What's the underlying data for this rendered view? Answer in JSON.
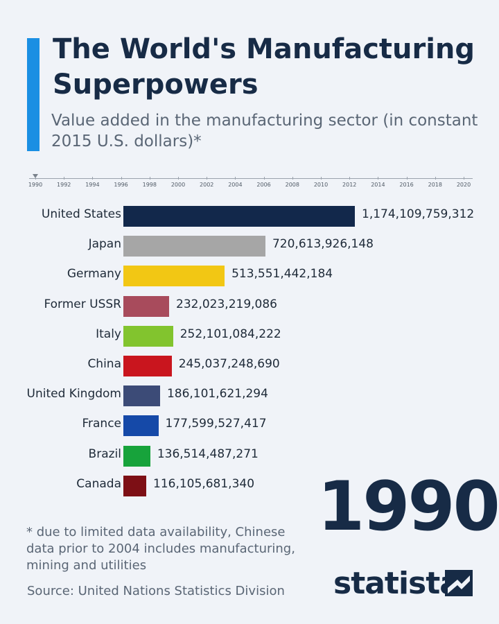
{
  "title": "The World's Manufacturing Superpowers",
  "subtitle": "Value added in the manufacturing sector (in constant 2015 U.S. dollars)*",
  "timeline": {
    "ticks": [
      "1990",
      "1992",
      "1994",
      "1996",
      "1998",
      "2000",
      "2002",
      "2004",
      "2006",
      "2008",
      "2010",
      "2012",
      "2014",
      "2016",
      "2018",
      "2020"
    ],
    "current": "1990"
  },
  "chart_data": {
    "type": "bar",
    "orientation": "horizontal",
    "categories": [
      "United States",
      "Japan",
      "Germany",
      "Former USSR",
      "Italy",
      "China",
      "United Kingdom",
      "France",
      "Brazil",
      "Canada"
    ],
    "values": [
      1174109759312,
      720613926148,
      513551442184,
      232023219086,
      252101084222,
      245037248690,
      186101621294,
      177599527417,
      136514487271,
      116105681340
    ],
    "value_labels": [
      "1,174,109,759,312",
      "720,613,926,148",
      "513,551,442,184",
      "232,023,219,086",
      "252,101,084,222",
      "245,037,248,690",
      "186,101,621,294",
      "177,599,527,417",
      "136,514,487,271",
      "116,105,681,340"
    ],
    "colors": [
      "#12284b",
      "#a6a6a6",
      "#f2c714",
      "#a84b5c",
      "#82c42e",
      "#c9151e",
      "#3c4b77",
      "#1549a8",
      "#17a33b",
      "#7d0f15"
    ],
    "grid": false,
    "legend": "none"
  },
  "year_label": "1990",
  "footnote": "* due to limited data availability, Chinese data prior to 2004 includes manufacturing, mining and utilities",
  "source": "Source: United Nations Statistics Division",
  "brand": "statista",
  "brand_icon": "statista-logo-icon"
}
